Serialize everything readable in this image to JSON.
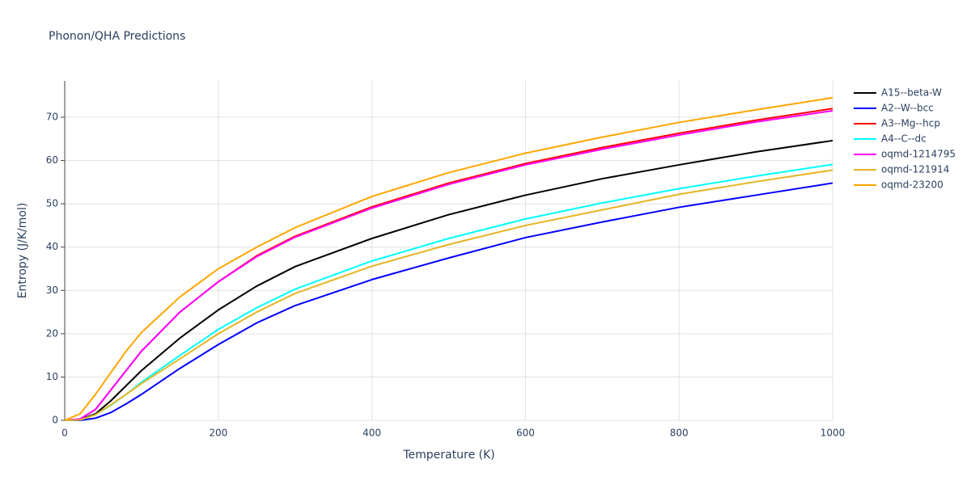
{
  "chart_data": {
    "type": "line",
    "title": "Phonon/QHA Predictions",
    "x_label": "Temperature (K)",
    "y_label": "Entropy (J/K/mol)",
    "x": [
      0,
      20,
      40,
      60,
      80,
      100,
      150,
      200,
      250,
      300,
      400,
      500,
      600,
      700,
      800,
      900,
      1000
    ],
    "series": [
      {
        "name": "A15--beta-W",
        "color": "#000000",
        "values": [
          0,
          0.2,
          1.5,
          4.5,
          8,
          11.5,
          19,
          25.5,
          31,
          35.5,
          42,
          47.5,
          52,
          55.8,
          59,
          62,
          64.6
        ]
      },
      {
        "name": "A2--W--bcc",
        "color": "#0000ff",
        "values": [
          0,
          0,
          0.5,
          1.8,
          3.8,
          6,
          12,
          17.5,
          22.5,
          26.5,
          32.5,
          37.5,
          42.2,
          45.8,
          49.2,
          52,
          54.8
        ]
      },
      {
        "name": "A3--Mg--hcp",
        "color": "#ff0000",
        "values": [
          0,
          0.3,
          2.5,
          7,
          11.5,
          16,
          25,
          32,
          38,
          42.5,
          49.3,
          54.8,
          59.3,
          63,
          66.3,
          69.3,
          72
        ]
      },
      {
        "name": "A4--C--dc",
        "color": "#00ffff",
        "values": [
          0,
          0.1,
          1.3,
          3.5,
          6,
          8.8,
          15,
          21,
          26,
          30.3,
          36.8,
          42,
          46.5,
          50.2,
          53.5,
          56.4,
          59.1
        ]
      },
      {
        "name": "oqmd-1214795",
        "color": "#ff00ff",
        "values": [
          0,
          0.3,
          2.5,
          7,
          11.5,
          16,
          25,
          32,
          37.8,
          42.3,
          49,
          54.5,
          59,
          62.6,
          65.9,
          68.9,
          71.5
        ]
      },
      {
        "name": "oqmd-121914",
        "color": "#e6b422",
        "values": [
          0,
          0.1,
          1.3,
          3.6,
          6,
          8.5,
          14.2,
          20,
          25,
          29.3,
          35.6,
          40.6,
          45,
          48.6,
          52.2,
          55.1,
          57.8
        ]
      },
      {
        "name": "oqmd-23200",
        "color": "#ffa500",
        "values": [
          0,
          1.5,
          6,
          11,
          16,
          20.3,
          28.5,
          35,
          40,
          44.5,
          51.7,
          57.2,
          61.7,
          65.4,
          68.8,
          71.7,
          74.5
        ]
      }
    ],
    "xlim": [
      0,
      1000
    ],
    "ylim": [
      0,
      78.4
    ],
    "xticks": [
      0,
      200,
      400,
      600,
      800,
      1000
    ],
    "yticks": [
      0,
      10,
      20,
      30,
      40,
      50,
      60,
      70
    ],
    "grid": true
  }
}
